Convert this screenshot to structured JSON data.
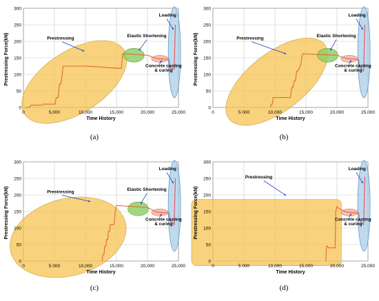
{
  "colors": {
    "curve": "#e06a38",
    "load_curve": "#e8505a",
    "prestress_fill": "#f5c04a",
    "elastic_fill": "#8fd06a",
    "casting_fill": "#f4b4a4",
    "loading_fill": "#a8cde8",
    "arrow": "#2040c0",
    "grid": "#c8c8c8"
  },
  "chart_data": [
    {
      "type": "line",
      "caption": "(a)",
      "xlabel": "Time History",
      "ylabel": "Prestressing Force(kN)",
      "xlim": [
        0,
        25000
      ],
      "ylim": [
        0,
        300
      ],
      "xticks": [
        "0",
        "5,000",
        "10,000",
        "15,000",
        "20,000",
        "25,000"
      ],
      "xtick_values": [
        0,
        5000,
        10000,
        15000,
        20000,
        25000
      ],
      "yticks": [
        "0",
        "50",
        "100",
        "150",
        "200",
        "250",
        "300"
      ],
      "ytick_values": [
        0,
        50,
        100,
        150,
        200,
        250,
        300
      ],
      "annotations": [
        "Prestressing",
        "Elastic Shortening",
        "Concrete casting",
        "& curing",
        "Loading"
      ],
      "series": [
        {
          "x": [
            300,
            1000,
            1200,
            3000,
            3200,
            5100,
            5300,
            5600,
            5800,
            6000,
            6200,
            6400,
            10000,
            12000,
            14000,
            15800,
            16000,
            20000,
            21500,
            23500,
            23600,
            24300,
            24500
          ],
          "y": [
            0,
            0,
            7,
            7,
            10,
            10,
            30,
            30,
            70,
            70,
            90,
            125,
            125,
            123,
            120,
            118,
            163,
            158,
            148,
            145,
            120,
            115,
            250
          ]
        }
      ]
    },
    {
      "type": "line",
      "caption": "(b)",
      "xlabel": "Time History",
      "ylabel": "Prestressing Force(kN)",
      "xlim": [
        0,
        25000
      ],
      "ylim": [
        0,
        300
      ],
      "xticks": [
        "0",
        "5 000",
        "10,000",
        "15,000",
        "20,000",
        "25,000"
      ],
      "xtick_values": [
        0,
        5000,
        10000,
        15000,
        20000,
        25000
      ],
      "yticks": [
        "0",
        "50",
        "100",
        "150",
        "200",
        "250",
        "300"
      ],
      "ytick_values": [
        0,
        50,
        100,
        150,
        200,
        250,
        300
      ],
      "annotations": [
        "Prestressing",
        "Elastic Shortening",
        "Concrete casting",
        "& curing",
        "Loading"
      ],
      "series": [
        {
          "x": [
            9300,
            9400,
            9600,
            9700,
            12500,
            12700,
            12900,
            13100,
            13300,
            13500,
            13700,
            14200,
            14300,
            14500,
            20000,
            21500,
            23500,
            23600,
            24300,
            24500
          ],
          "y": [
            0,
            10,
            10,
            30,
            30,
            60,
            60,
            80,
            80,
            110,
            110,
            130,
            150,
            162,
            158,
            148,
            145,
            125,
            110,
            250
          ]
        }
      ]
    },
    {
      "type": "line",
      "caption": "(c)",
      "xlabel": "Time History",
      "ylabel": "Prestressing Force(kN)",
      "xlim": [
        0,
        25000
      ],
      "ylim": [
        0,
        300
      ],
      "xticks": [
        "0",
        "5 000",
        "10,000",
        "15,000",
        "20,000",
        "25,000"
      ],
      "xtick_values": [
        0,
        5000,
        10000,
        15000,
        20000,
        25000
      ],
      "yticks": [
        "0",
        "50",
        "100",
        "150",
        "200",
        "250",
        "300"
      ],
      "ytick_values": [
        0,
        50,
        100,
        150,
        200,
        250,
        300
      ],
      "annotations": [
        "Prestressing",
        "Elastic Shortening",
        "Concrete casting",
        "& curing",
        "Loading"
      ],
      "series": [
        {
          "x": [
            12700,
            12800,
            13000,
            13100,
            13300,
            13400,
            13600,
            13700,
            13900,
            14000,
            14600,
            14800,
            15000,
            20000,
            21500,
            23500,
            23600,
            24300,
            24500
          ],
          "y": [
            0,
            20,
            20,
            45,
            45,
            65,
            65,
            90,
            90,
            110,
            110,
            150,
            168,
            162,
            148,
            145,
            125,
            110,
            250
          ]
        }
      ]
    },
    {
      "type": "line",
      "caption": "(d)",
      "xlabel": "Time History",
      "ylabel": "Prestressing Force(kN)",
      "xlim": [
        0,
        25000
      ],
      "ylim": [
        0,
        300
      ],
      "xticks": [
        "0",
        "5 000",
        "10,000",
        "15,000",
        "20,000",
        "25,000"
      ],
      "xtick_values": [
        0,
        5000,
        10000,
        15000,
        20000,
        25000
      ],
      "yticks": [
        "0",
        "50",
        "100",
        "150",
        "200",
        "250",
        "300"
      ],
      "ytick_values": [
        0,
        50,
        100,
        150,
        200,
        250,
        300
      ],
      "annotations": [
        "Prestressing",
        "Concrete casting",
        "& curing",
        "Loading"
      ],
      "series": [
        {
          "x": [
            18200,
            18300,
            18500,
            18600,
            19700,
            19800,
            20000,
            20200,
            21500,
            23500,
            23600,
            24300,
            24500
          ],
          "y": [
            0,
            45,
            45,
            40,
            40,
            150,
            165,
            160,
            148,
            145,
            125,
            110,
            255
          ]
        }
      ]
    }
  ]
}
